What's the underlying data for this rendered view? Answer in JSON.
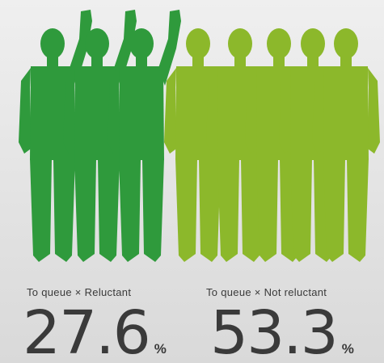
{
  "panels": [
    {
      "label": "To queue × Reluctant",
      "value": "27.6",
      "unit": "%"
    },
    {
      "label": "To queue × Not reluctant",
      "value": "53.3",
      "unit": "%"
    }
  ]
}
